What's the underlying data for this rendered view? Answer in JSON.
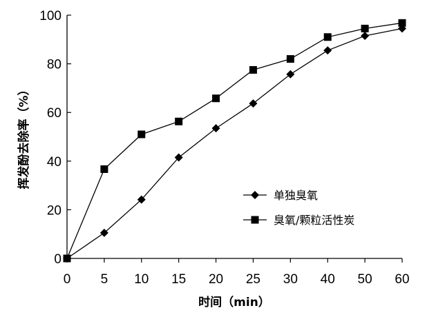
{
  "chart_data": {
    "type": "line",
    "xlabel": "时间（min）",
    "ylabel": "挥发酚去除率（%）",
    "categories": [
      "0",
      "5",
      "10",
      "15",
      "20",
      "25",
      "30",
      "40",
      "50",
      "60"
    ],
    "ylim": [
      0,
      100
    ],
    "yticks": [
      "0",
      "20",
      "40",
      "60",
      "80",
      "100"
    ],
    "grid": false,
    "legend_position": "bottom-right",
    "series": [
      {
        "name": "单独臭氧",
        "marker": "diamond",
        "color": "#000000",
        "values": [
          0,
          10.5,
          24.2,
          41.5,
          53.5,
          63.7,
          75.7,
          85.5,
          91.5,
          94.5
        ]
      },
      {
        "name": "臭氧/颗粒活性炭",
        "marker": "square",
        "color": "#000000",
        "values": [
          0,
          36.7,
          51,
          56.3,
          65.8,
          77.5,
          82,
          91,
          94.5,
          96.8
        ]
      }
    ]
  }
}
